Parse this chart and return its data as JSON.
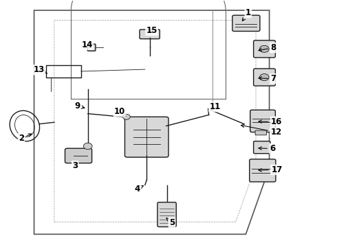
{
  "bg_color": "#ffffff",
  "line_color": "#1a1a1a",
  "label_color": "#000000",
  "arrow_color": "#000000",
  "font_size": 8.5
}
